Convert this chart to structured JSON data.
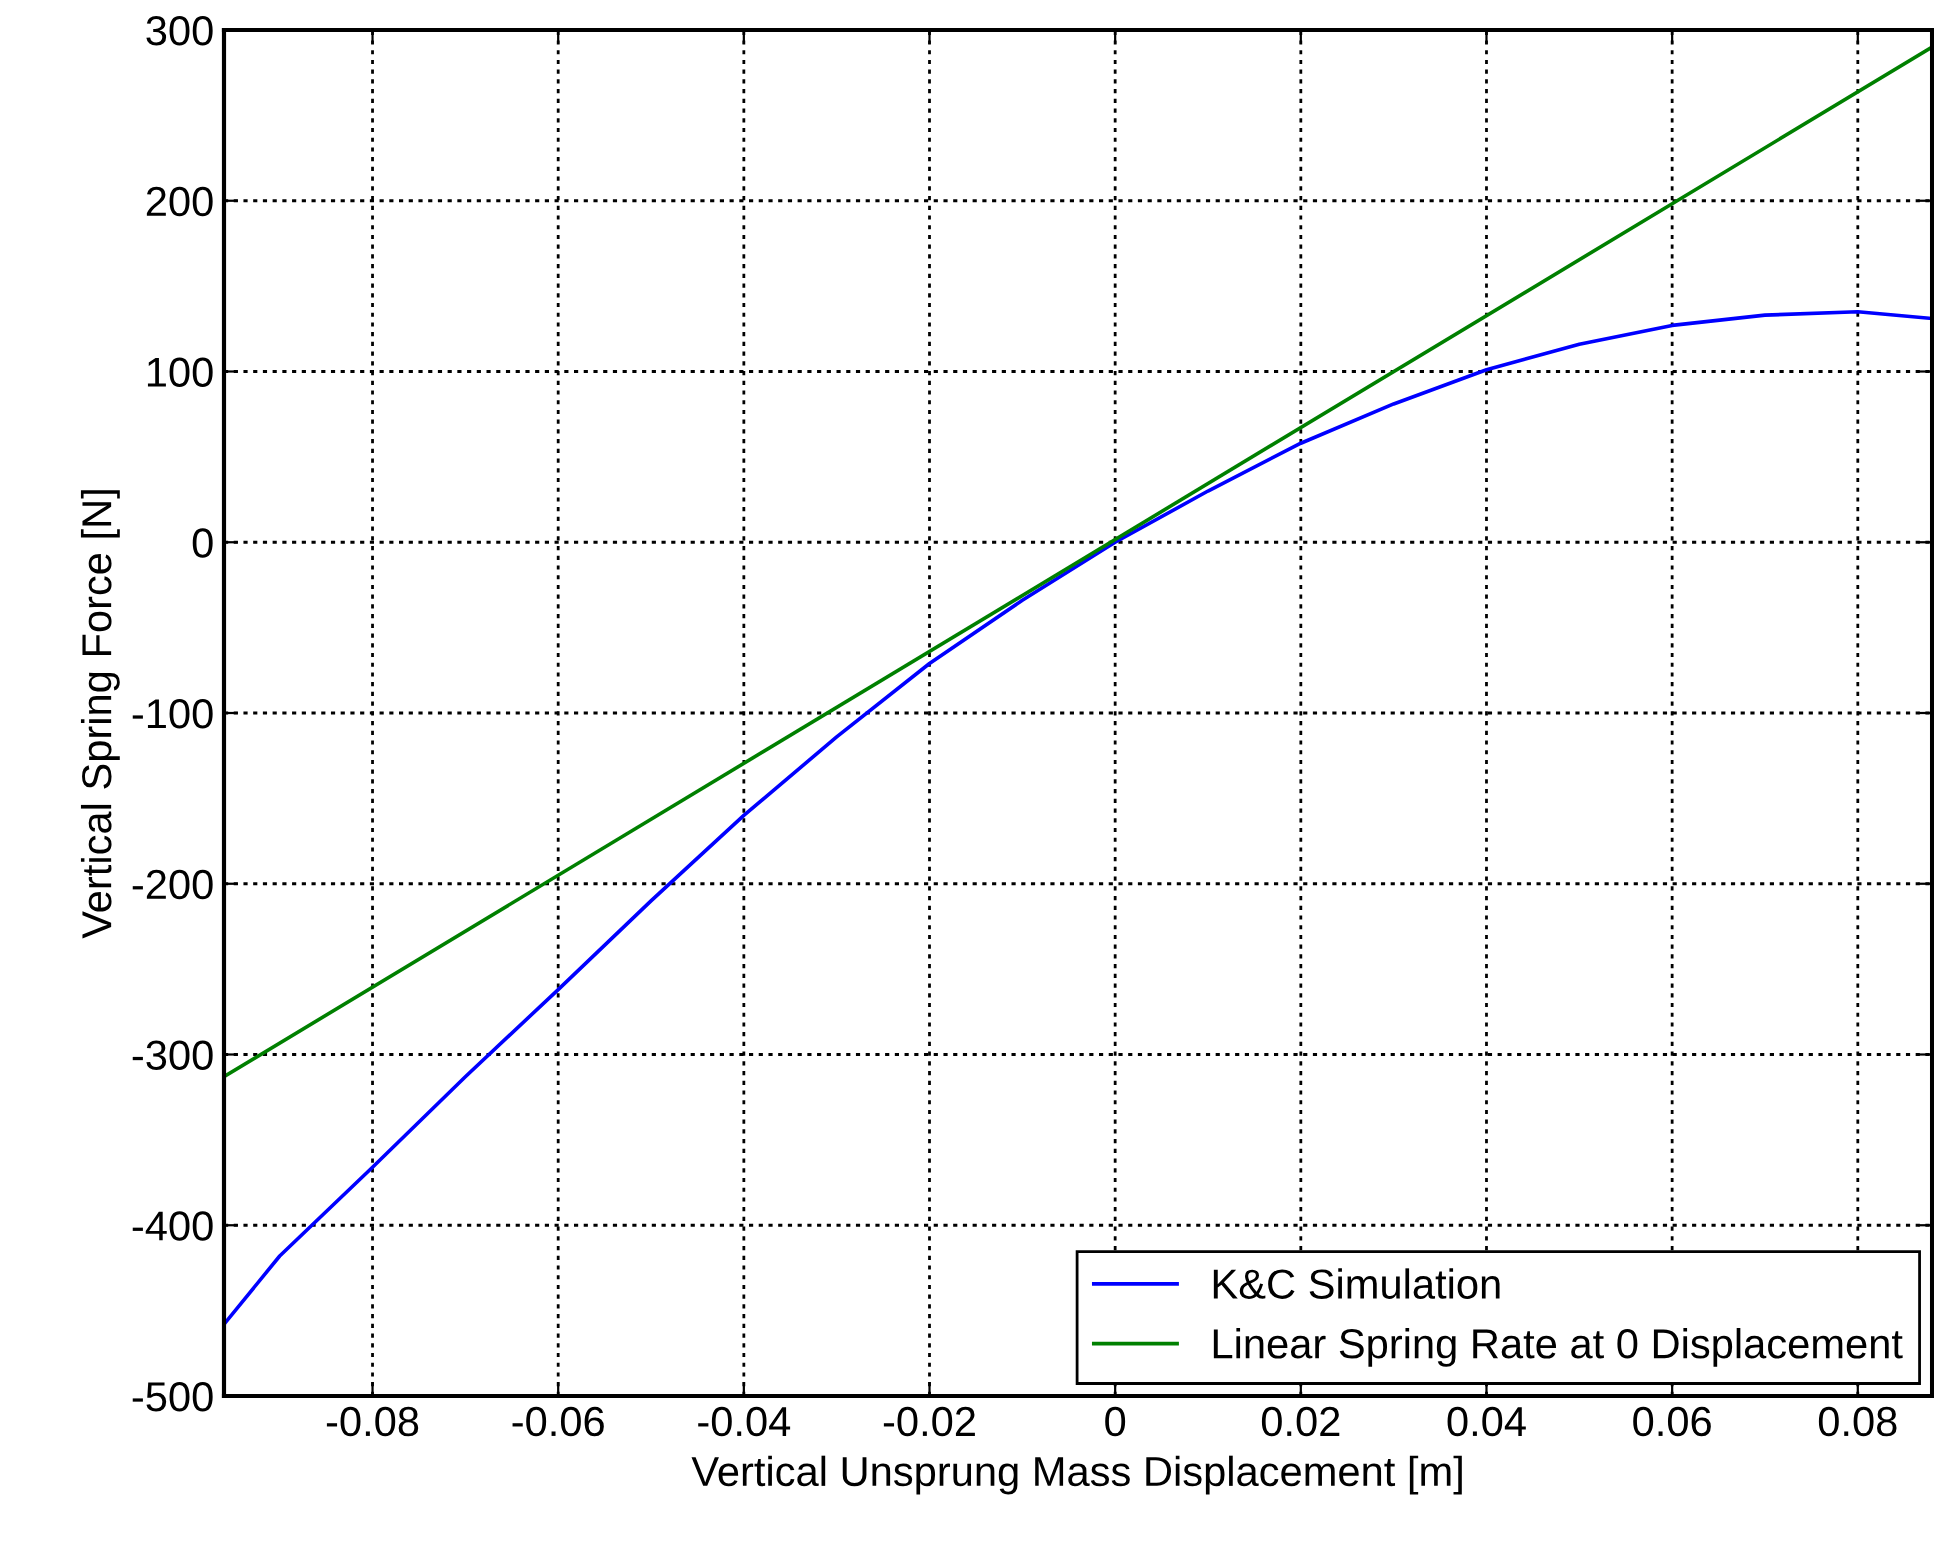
{
  "chart_data": {
    "type": "line",
    "xlabel": "Vertical Unsprung Mass Displacement [m]",
    "ylabel": "Vertical Spring Force [N]",
    "xlim": [
      -0.096,
      0.088
    ],
    "ylim": [
      -500,
      300
    ],
    "xticks": [
      -0.08,
      -0.06,
      -0.04,
      -0.02,
      0,
      0.02,
      0.04,
      0.06,
      0.08
    ],
    "yticks": [
      -500,
      -400,
      -300,
      -200,
      -100,
      0,
      100,
      200,
      300
    ],
    "grid": true,
    "legend": "bottom right",
    "line_style": "solid",
    "marker": "none",
    "series": [
      {
        "name": "K&C Simulation",
        "color": "#0000ff",
        "x": [
          -0.096,
          -0.09,
          -0.08,
          -0.07,
          -0.06,
          -0.05,
          -0.04,
          -0.03,
          -0.02,
          -0.01,
          0,
          0.01,
          0.02,
          0.03,
          0.04,
          0.05,
          0.06,
          0.07,
          0.08,
          0.088
        ],
        "values": [
          -458,
          -418,
          -366,
          -313,
          -262,
          -210,
          -160,
          -114,
          -71,
          -34,
          0,
          30,
          58,
          81,
          101,
          116,
          127,
          133,
          135,
          131
        ]
      },
      {
        "name": "Linear Spring Rate at 0 Displacement",
        "color": "#008000",
        "x": [
          -0.096,
          0.088
        ],
        "values": [
          -313,
          290
        ]
      }
    ]
  }
}
